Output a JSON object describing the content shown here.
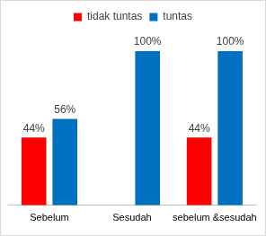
{
  "chart_data": {
    "type": "bar",
    "categories": [
      "Sebelum",
      "Sesudah",
      "sebelum &sesudah"
    ],
    "series": [
      {
        "name": "tidak tuntas",
        "color": "#ff0000",
        "values": [
          44,
          null,
          44
        ],
        "value_labels": [
          "44%",
          null,
          "44%"
        ]
      },
      {
        "name": "tuntas",
        "color": "#0070c0",
        "values": [
          56,
          100,
          100
        ],
        "value_labels": [
          "56%",
          "100%",
          "100%"
        ]
      }
    ],
    "ylim": [
      0,
      100
    ],
    "grid": false,
    "legend": "top",
    "data_labels": true,
    "tick_labels": "x"
  }
}
